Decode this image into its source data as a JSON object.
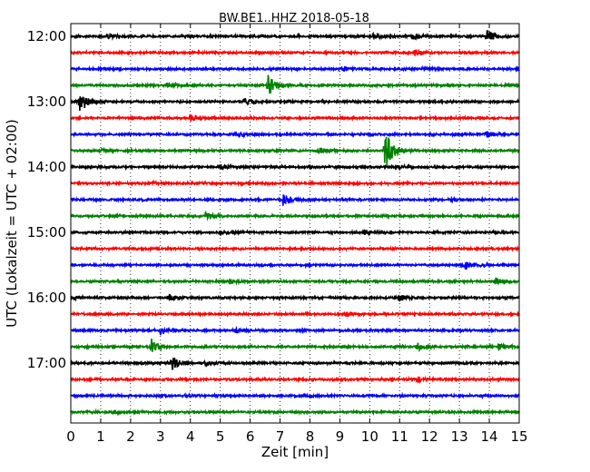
{
  "chart_data": {
    "type": "line",
    "title": "BW.BE1..HHZ 2018-05-18",
    "xlabel": "Zeit  [min]",
    "ylabel": "UTC (Lokalzeit = UTC + 02:00)",
    "xlim": [
      0,
      15
    ],
    "x_ticks": [
      "0",
      "1",
      "2",
      "3",
      "4",
      "5",
      "6",
      "7",
      "8",
      "9",
      "10",
      "11",
      "12",
      "13",
      "14",
      "15"
    ],
    "y_ticks": [
      {
        "label": "12:00",
        "trace": 0
      },
      {
        "label": "13:00",
        "trace": 4
      },
      {
        "label": "14:00",
        "trace": 8
      },
      {
        "label": "15:00",
        "trace": 12
      },
      {
        "label": "16:00",
        "trace": 16
      },
      {
        "label": "17:00",
        "trace": 20
      }
    ],
    "grid": "vertical dotted at each minute",
    "colors": [
      "#000000",
      "#ff0000",
      "#0000ff",
      "#008000"
    ],
    "traces": [
      {
        "start": "12:00",
        "color": "#000000",
        "events": [
          [
            13.9,
            1.0
          ],
          [
            11.4,
            0.5
          ],
          [
            10.1,
            0.45
          ],
          [
            1.2,
            0.3
          ]
        ]
      },
      {
        "start": "12:15",
        "color": "#ff0000",
        "events": [
          [
            11.5,
            0.35
          ]
        ]
      },
      {
        "start": "12:30",
        "color": "#0000ff",
        "events": [
          [
            9.1,
            0.3
          ],
          [
            11.8,
            0.3
          ]
        ]
      },
      {
        "start": "12:45",
        "color": "#008000",
        "events": [
          [
            6.6,
            1.4
          ],
          [
            3.2,
            0.3
          ]
        ]
      },
      {
        "start": "13:00",
        "color": "#000000",
        "events": [
          [
            0.3,
            1.6
          ],
          [
            5.8,
            0.45
          ]
        ]
      },
      {
        "start": "13:15",
        "color": "#ff0000",
        "events": [
          [
            4.0,
            0.45
          ]
        ]
      },
      {
        "start": "13:30",
        "color": "#0000ff",
        "events": [
          [
            5.6,
            0.3
          ],
          [
            13.9,
            0.4
          ]
        ]
      },
      {
        "start": "13:45",
        "color": "#008000",
        "events": [
          [
            10.5,
            3.0
          ],
          [
            8.3,
            0.45
          ],
          [
            1.0,
            0.3
          ]
        ]
      },
      {
        "start": "14:00",
        "color": "#000000",
        "events": [
          [
            5.0,
            0.3
          ],
          [
            10.9,
            0.35
          ]
        ]
      },
      {
        "start": "14:15",
        "color": "#ff0000",
        "events": [
          [
            2.6,
            0.2
          ]
        ]
      },
      {
        "start": "14:30",
        "color": "#0000ff",
        "events": [
          [
            7.1,
            0.8
          ],
          [
            12.7,
            0.3
          ]
        ]
      },
      {
        "start": "14:45",
        "color": "#008000",
        "events": [
          [
            4.5,
            0.45
          ]
        ]
      },
      {
        "start": "15:00",
        "color": "#000000",
        "events": [
          [
            5.0,
            0.35
          ],
          [
            9.8,
            0.3
          ]
        ]
      },
      {
        "start": "15:15",
        "color": "#ff0000",
        "events": []
      },
      {
        "start": "15:30",
        "color": "#0000ff",
        "events": [
          [
            13.2,
            0.55
          ]
        ]
      },
      {
        "start": "15:45",
        "color": "#008000",
        "events": [
          [
            5.3,
            0.3
          ],
          [
            14.2,
            0.35
          ]
        ]
      },
      {
        "start": "16:00",
        "color": "#000000",
        "events": [
          [
            3.3,
            0.4
          ],
          [
            11.0,
            0.5
          ],
          [
            0.1,
            0.3
          ]
        ]
      },
      {
        "start": "16:15",
        "color": "#ff0000",
        "events": [
          [
            9.2,
            0.4
          ]
        ]
      },
      {
        "start": "16:30",
        "color": "#0000ff",
        "events": [
          [
            3.0,
            0.55
          ],
          [
            5.5,
            0.3
          ]
        ]
      },
      {
        "start": "16:45",
        "color": "#008000",
        "events": [
          [
            2.7,
            1.0
          ],
          [
            11.6,
            0.6
          ],
          [
            14.3,
            0.5
          ]
        ]
      },
      {
        "start": "17:00",
        "color": "#000000",
        "events": [
          [
            3.4,
            0.9
          ],
          [
            4.5,
            0.3
          ]
        ]
      },
      {
        "start": "17:15",
        "color": "#ff0000",
        "events": [
          [
            11.6,
            0.35
          ]
        ]
      },
      {
        "start": "17:30",
        "color": "#0000ff",
        "events": [
          [
            3.8,
            0.25
          ]
        ]
      },
      {
        "start": "17:45",
        "color": "#008000",
        "events": [
          [
            1.4,
            0.25
          ]
        ]
      }
    ]
  }
}
